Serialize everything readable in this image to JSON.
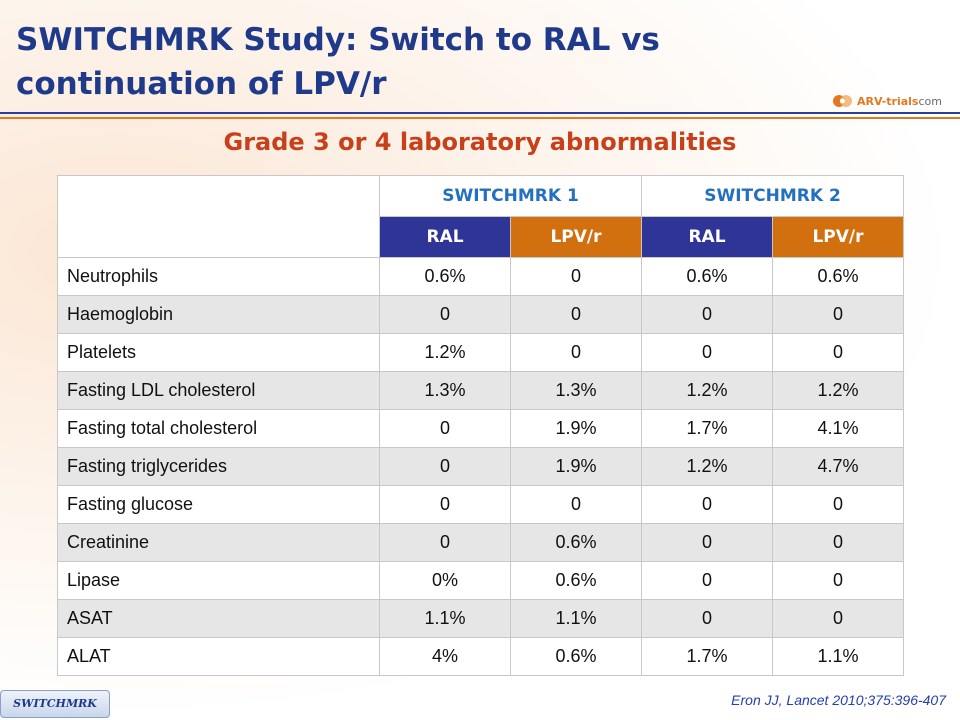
{
  "slide": {
    "title": "SWITCHMRK Study: Switch to RAL vs continuation of LPV/r",
    "subtitle": "Grade 3 or 4 laboratory abnormalities",
    "logo": {
      "brand": "ARV-trials",
      "suffix": "com",
      "icon": "arv-trials-logo-icon"
    },
    "footer_tag": "SWITCHMRK",
    "citation": "Eron JJ, Lancet 2010;375:396-407",
    "colors": {
      "title": "#1f3a8a",
      "subtitle": "#c8401a",
      "ral_header": "#2f3596",
      "lpv_header": "#d2700f",
      "study_header": "#2470c0"
    }
  },
  "table": {
    "studies": [
      "SWITCHMRK 1",
      "SWITCHMRK 2"
    ],
    "arms": [
      "RAL",
      "LPV/r",
      "RAL",
      "LPV/r"
    ],
    "rows": [
      {
        "label": "Neutrophils",
        "values": [
          "0.6%",
          "0",
          "0.6%",
          "0.6%"
        ]
      },
      {
        "label": "Haemoglobin",
        "values": [
          "0",
          "0",
          "0",
          "0"
        ]
      },
      {
        "label": "Platelets",
        "values": [
          "1.2%",
          "0",
          "0",
          "0"
        ]
      },
      {
        "label": "Fasting LDL cholesterol",
        "values": [
          "1.3%",
          "1.3%",
          "1.2%",
          "1.2%"
        ]
      },
      {
        "label": "Fasting total cholesterol",
        "values": [
          "0",
          "1.9%",
          "1.7%",
          "4.1%"
        ]
      },
      {
        "label": "Fasting triglycerides",
        "values": [
          "0",
          "1.9%",
          "1.2%",
          "4.7%"
        ]
      },
      {
        "label": "Fasting glucose",
        "values": [
          "0",
          "0",
          "0",
          "0"
        ]
      },
      {
        "label": "Creatinine",
        "values": [
          "0",
          "0.6%",
          "0",
          "0"
        ]
      },
      {
        "label": "Lipase",
        "values": [
          "0%",
          "0.6%",
          "0",
          "0"
        ]
      },
      {
        "label": "ASAT",
        "values": [
          "1.1%",
          "1.1%",
          "0",
          "0"
        ]
      },
      {
        "label": "ALAT",
        "values": [
          "4%",
          "0.6%",
          "1.7%",
          "1.1%"
        ]
      }
    ]
  }
}
